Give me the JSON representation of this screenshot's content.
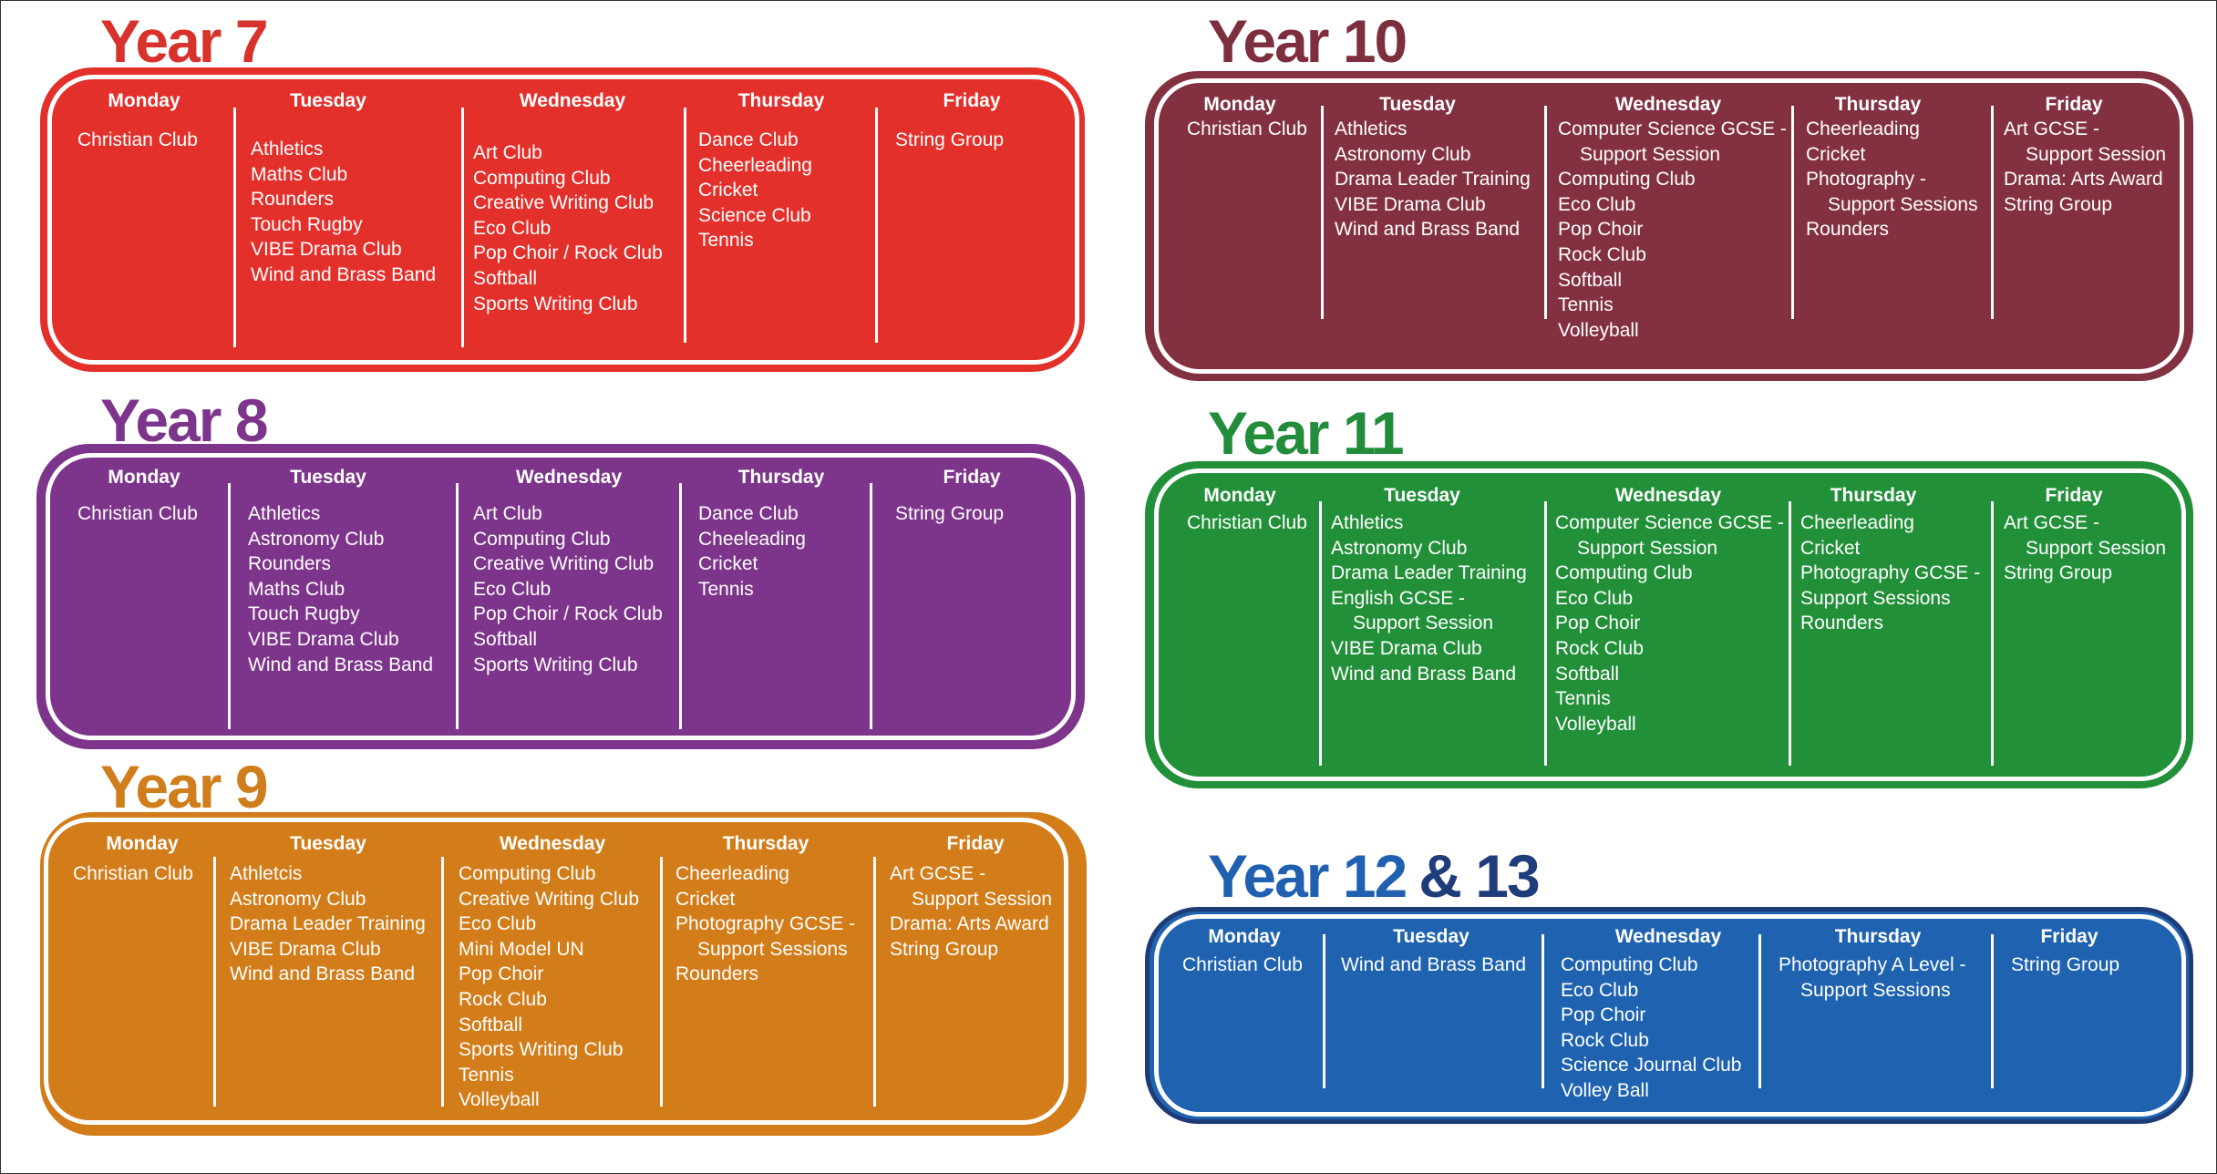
{
  "days": [
    "Monday",
    "Tuesday",
    "Wednesday",
    "Thursday",
    "Friday"
  ],
  "years": [
    {
      "id": "y7",
      "title": "Year 7",
      "title_color": "#d7322c",
      "panel_color": "#e4302b",
      "outline_color": "#e4302b",
      "columns": [
        {
          "day": "Monday",
          "items": [
            "Christian Club"
          ]
        },
        {
          "day": "Tuesday",
          "items": [
            "Athletics",
            "Maths Club",
            "Rounders",
            "Touch Rugby",
            "VIBE Drama Club",
            "Wind and Brass Band"
          ]
        },
        {
          "day": "Wednesday",
          "items": [
            "Art Club",
            "Computing Club",
            "Creative Writing Club",
            "Eco Club",
            "Pop Choir / Rock Club",
            "Softball",
            "Sports Writing Club"
          ]
        },
        {
          "day": "Thursday",
          "items": [
            "Dance Club",
            "Cheerleading",
            "Cricket",
            "Science Club",
            "Tennis"
          ]
        },
        {
          "day": "Friday",
          "items": [
            "String Group"
          ]
        }
      ]
    },
    {
      "id": "y8",
      "title": "Year 8",
      "title_color": "#7c358b",
      "panel_color": "#7d348b",
      "outline_color": "#7d348b",
      "columns": [
        {
          "day": "Monday",
          "items": [
            "Christian Club"
          ]
        },
        {
          "day": "Tuesday",
          "items": [
            "Athletics",
            "Astronomy Club",
            "Rounders",
            "Maths Club",
            "Touch Rugby",
            "VIBE Drama Club",
            "Wind and Brass Band"
          ]
        },
        {
          "day": "Wednesday",
          "items": [
            "Art Club",
            "Computing Club",
            "Creative Writing Club",
            "Eco Club",
            "Pop Choir / Rock Club",
            "Softball",
            "Sports Writing Club"
          ]
        },
        {
          "day": "Thursday",
          "items": [
            "Dance Club",
            "Cheeleading",
            "Cricket",
            "Tennis"
          ]
        },
        {
          "day": "Friday",
          "items": [
            "String Group"
          ]
        }
      ]
    },
    {
      "id": "y9",
      "title": "Year 9",
      "title_color": "#d07d1c",
      "panel_color": "#d27d1a",
      "outline_color": "#d27d1a",
      "columns": [
        {
          "day": "Monday",
          "items": [
            "Christian Club"
          ]
        },
        {
          "day": "Tuesday",
          "items": [
            "Athletcis",
            "Astronomy Club",
            "Drama Leader Training",
            "VIBE Drama Club",
            "Wind and Brass Band"
          ]
        },
        {
          "day": "Wednesday",
          "items": [
            "Computing Club",
            "Creative Writing Club",
            "Eco Club",
            "Mini Model UN",
            "Pop Choir",
            "Rock Club",
            "Softball",
            "Sports Writing Club",
            "Tennis",
            "Volleyball"
          ]
        },
        {
          "day": "Thursday",
          "items": [
            "Cheerleading",
            "Cricket",
            "Photography GCSE -",
            "Support Sessions",
            "Rounders"
          ]
        },
        {
          "day": "Friday",
          "items": [
            "Art GCSE -",
            "Support Session",
            "Drama: Arts Award",
            "String Group"
          ]
        }
      ]
    },
    {
      "id": "y10",
      "title": "Year 10",
      "title_color": "#7e2f3e",
      "panel_color": "#833140",
      "outline_color": "#833140",
      "columns": [
        {
          "day": "Monday",
          "items": [
            "Christian Club"
          ]
        },
        {
          "day": "Tuesday",
          "items": [
            "Athletics",
            "Astronomy Club",
            "Drama Leader Training",
            "VIBE Drama Club",
            "Wind and Brass Band"
          ]
        },
        {
          "day": "Wednesday",
          "items": [
            "Computer Science GCSE -",
            "Support Session",
            "Computing Club",
            "Eco Club",
            "Pop Choir",
            "Rock Club",
            "Softball",
            "Tennis",
            "Volleyball"
          ]
        },
        {
          "day": "Thursday",
          "items": [
            "Cheerleading",
            "Cricket",
            "Photography -",
            "Support Sessions",
            "Rounders"
          ]
        },
        {
          "day": "Friday",
          "items": [
            "Art GCSE  -",
            "Support Session",
            "Drama: Arts Award",
            "String Group"
          ]
        }
      ]
    },
    {
      "id": "y11",
      "title": "Year 11",
      "title_color": "#238c3b",
      "panel_color": "#229039",
      "outline_color": "#229039",
      "columns": [
        {
          "day": "Monday",
          "items": [
            "Christian Club"
          ]
        },
        {
          "day": "Tuesday",
          "items": [
            "Athletics",
            "Astronomy Club",
            "Drama Leader  Training",
            "English GCSE -",
            "Support Session",
            "VIBE Drama Club",
            "Wind and Brass Band"
          ]
        },
        {
          "day": "Wednesday",
          "items": [
            "Computer Science GCSE -",
            "Support Session",
            "Computing Club",
            "Eco Club",
            "Pop Choir",
            "Rock Club",
            "Softball",
            "Tennis",
            "Volleyball"
          ]
        },
        {
          "day": "Thursday",
          "items": [
            "Cheerleading",
            "Cricket",
            "Photography GCSE -",
            "Support Sessions",
            "Rounders"
          ]
        },
        {
          "day": "Friday",
          "items": [
            "Art GCSE -",
            "Support Session",
            "String Group"
          ]
        }
      ]
    },
    {
      "id": "y12",
      "title": "Year 12",
      "title_suffix": "& 13",
      "title_color": "#2060b0",
      "title_suffix_color": "#1f3d7a",
      "panel_color": "#1f63b0",
      "outline_color": "#1e3c78",
      "columns": [
        {
          "day": "Monday",
          "items": [
            "Christian Club"
          ]
        },
        {
          "day": "Tuesday",
          "items": [
            "Wind and Brass Band"
          ]
        },
        {
          "day": "Wednesday",
          "items": [
            "Computing Club",
            "Eco Club",
            "Pop Choir",
            "Rock Club",
            "Science Journal Club",
            "Volley Ball"
          ]
        },
        {
          "day": "Thursday",
          "items": [
            "Photography A Level -",
            "Support Sessions"
          ]
        },
        {
          "day": "Friday",
          "items": [
            "String Group"
          ]
        }
      ]
    }
  ]
}
